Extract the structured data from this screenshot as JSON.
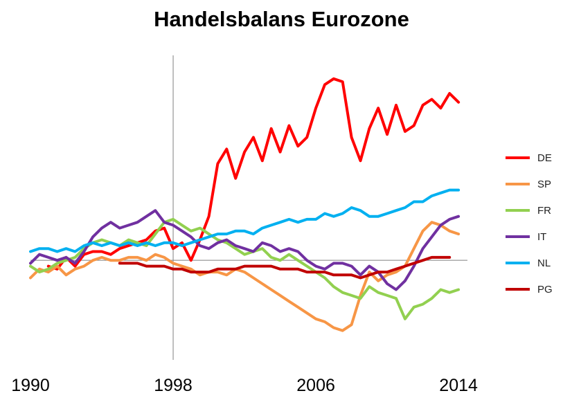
{
  "chart_data": {
    "type": "line",
    "title": "Handelsbalans Eurozone",
    "xlabel": "",
    "ylabel": "",
    "xlim": [
      1990,
      2014.5
    ],
    "ylim": [
      -3.4,
      7.0
    ],
    "xticks": [
      1990,
      1998,
      2006,
      2014
    ],
    "xtick_labels": [
      "1990",
      "1998",
      "2006",
      "2014"
    ],
    "zero_line": 0,
    "vertical_line_x": 1998,
    "y_axis_labels": false,
    "grid": false,
    "legend": "right",
    "series": [
      {
        "name": "DE",
        "color": "#ff0000",
        "x": [
          1991.0,
          1991.5,
          1992.0,
          1992.5,
          1993.0,
          1993.5,
          1994.0,
          1994.5,
          1995.0,
          1995.5,
          1996.0,
          1996.5,
          1997.0,
          1997.5,
          1998.0,
          1998.5,
          1999.0,
          1999.5,
          2000.0,
          2000.5,
          2001.0,
          2001.5,
          2002.0,
          2002.5,
          2003.0,
          2003.5,
          2004.0,
          2004.5,
          2005.0,
          2005.5,
          2006.0,
          2006.5,
          2007.0,
          2007.5,
          2008.0,
          2008.5,
          2009.0,
          2009.5,
          2010.0,
          2010.5,
          2011.0,
          2011.5,
          2012.0,
          2012.5,
          2013.0,
          2013.5,
          2014.0
        ],
        "y": [
          -0.2,
          -0.3,
          0.1,
          -0.2,
          0.2,
          0.3,
          0.3,
          0.2,
          0.4,
          0.5,
          0.6,
          0.7,
          1.0,
          1.1,
          0.4,
          0.6,
          0.0,
          0.7,
          1.5,
          3.3,
          3.8,
          2.8,
          3.7,
          4.2,
          3.4,
          4.5,
          3.7,
          4.6,
          3.9,
          4.2,
          5.2,
          6.0,
          6.2,
          6.1,
          4.2,
          3.4,
          4.5,
          5.2,
          4.3,
          5.3,
          4.4,
          4.6,
          5.3,
          5.5,
          5.2,
          5.7,
          5.4
        ]
      },
      {
        "name": "SP",
        "color": "#f79646",
        "x": [
          1990.0,
          1990.5,
          1991.0,
          1991.5,
          1992.0,
          1992.5,
          1993.0,
          1993.5,
          1994.0,
          1994.5,
          1995.0,
          1995.5,
          1996.0,
          1996.5,
          1997.0,
          1997.5,
          1998.0,
          1998.5,
          1999.0,
          1999.5,
          2000.0,
          2000.5,
          2001.0,
          2001.5,
          2002.0,
          2002.5,
          2003.0,
          2003.5,
          2004.0,
          2004.5,
          2005.0,
          2005.5,
          2006.0,
          2006.5,
          2007.0,
          2007.5,
          2008.0,
          2008.5,
          2009.0,
          2009.5,
          2010.0,
          2010.5,
          2011.0,
          2011.5,
          2012.0,
          2012.5,
          2013.0,
          2013.5,
          2014.0
        ],
        "y": [
          -0.6,
          -0.3,
          -0.4,
          -0.2,
          -0.5,
          -0.3,
          -0.2,
          0.0,
          0.1,
          0.0,
          0.0,
          0.1,
          0.1,
          0.0,
          0.2,
          0.1,
          -0.1,
          -0.2,
          -0.3,
          -0.5,
          -0.4,
          -0.4,
          -0.5,
          -0.3,
          -0.4,
          -0.6,
          -0.8,
          -1.0,
          -1.2,
          -1.4,
          -1.6,
          -1.8,
          -2.0,
          -2.1,
          -2.3,
          -2.4,
          -2.2,
          -1.2,
          -0.4,
          -0.7,
          -0.5,
          -0.4,
          -0.2,
          0.4,
          1.0,
          1.3,
          1.2,
          1.0,
          0.9
        ]
      },
      {
        "name": "FR",
        "color": "#92d050",
        "x": [
          1990.0,
          1990.5,
          1991.0,
          1991.5,
          1992.0,
          1992.5,
          1993.0,
          1993.5,
          1994.0,
          1994.5,
          1995.0,
          1995.5,
          1996.0,
          1996.5,
          1997.0,
          1997.5,
          1998.0,
          1998.5,
          1999.0,
          1999.5,
          2000.0,
          2000.5,
          2001.0,
          2001.5,
          2002.0,
          2002.5,
          2003.0,
          2003.5,
          2004.0,
          2004.5,
          2005.0,
          2005.5,
          2006.0,
          2006.5,
          2007.0,
          2007.5,
          2008.0,
          2008.5,
          2009.0,
          2009.5,
          2010.0,
          2010.5,
          2011.0,
          2011.5,
          2012.0,
          2012.5,
          2013.0,
          2013.5,
          2014.0
        ],
        "y": [
          -0.2,
          -0.4,
          -0.3,
          -0.1,
          0.0,
          0.1,
          0.4,
          0.6,
          0.7,
          0.6,
          0.5,
          0.7,
          0.6,
          0.5,
          0.9,
          1.3,
          1.4,
          1.2,
          1.0,
          1.1,
          0.9,
          0.7,
          0.6,
          0.4,
          0.2,
          0.3,
          0.4,
          0.1,
          0.0,
          0.2,
          0.0,
          -0.2,
          -0.4,
          -0.6,
          -0.9,
          -1.1,
          -1.2,
          -1.3,
          -0.9,
          -1.1,
          -1.2,
          -1.3,
          -2.0,
          -1.6,
          -1.5,
          -1.3,
          -1.0,
          -1.1,
          -1.0
        ]
      },
      {
        "name": "IT",
        "color": "#7030a0",
        "x": [
          1990.0,
          1990.5,
          1991.0,
          1991.5,
          1992.0,
          1992.5,
          1993.0,
          1993.5,
          1994.0,
          1994.5,
          1995.0,
          1995.5,
          1996.0,
          1996.5,
          1997.0,
          1997.5,
          1998.0,
          1998.5,
          1999.0,
          1999.5,
          2000.0,
          2000.5,
          2001.0,
          2001.5,
          2002.0,
          2002.5,
          2003.0,
          2003.5,
          2004.0,
          2004.5,
          2005.0,
          2005.5,
          2006.0,
          2006.5,
          2007.0,
          2007.5,
          2008.0,
          2008.5,
          2009.0,
          2009.5,
          2010.0,
          2010.5,
          2011.0,
          2011.5,
          2012.0,
          2012.5,
          2013.0,
          2013.5,
          2014.0
        ],
        "y": [
          -0.1,
          0.2,
          0.1,
          0.0,
          0.1,
          -0.1,
          0.3,
          0.8,
          1.1,
          1.3,
          1.1,
          1.2,
          1.3,
          1.5,
          1.7,
          1.3,
          1.2,
          1.0,
          0.8,
          0.5,
          0.4,
          0.6,
          0.7,
          0.5,
          0.4,
          0.3,
          0.6,
          0.5,
          0.3,
          0.4,
          0.3,
          0.0,
          -0.2,
          -0.3,
          -0.1,
          -0.1,
          -0.2,
          -0.5,
          -0.2,
          -0.4,
          -0.8,
          -1.0,
          -0.7,
          -0.2,
          0.4,
          0.8,
          1.2,
          1.4,
          1.5
        ]
      },
      {
        "name": "NL",
        "color": "#00b0f0",
        "x": [
          1990.0,
          1990.5,
          1991.0,
          1991.5,
          1992.0,
          1992.5,
          1993.0,
          1993.5,
          1994.0,
          1994.5,
          1995.0,
          1995.5,
          1996.0,
          1996.5,
          1997.0,
          1997.5,
          1998.0,
          1998.5,
          1999.0,
          1999.5,
          2000.0,
          2000.5,
          2001.0,
          2001.5,
          2002.0,
          2002.5,
          2003.0,
          2003.5,
          2004.0,
          2004.5,
          2005.0,
          2005.5,
          2006.0,
          2006.5,
          2007.0,
          2007.5,
          2008.0,
          2008.5,
          2009.0,
          2009.5,
          2010.0,
          2010.5,
          2011.0,
          2011.5,
          2012.0,
          2012.5,
          2013.0,
          2013.5,
          2014.0
        ],
        "y": [
          0.3,
          0.4,
          0.4,
          0.3,
          0.4,
          0.3,
          0.5,
          0.6,
          0.5,
          0.6,
          0.5,
          0.6,
          0.5,
          0.6,
          0.5,
          0.6,
          0.6,
          0.5,
          0.6,
          0.7,
          0.8,
          0.9,
          0.9,
          1.0,
          1.0,
          0.9,
          1.1,
          1.2,
          1.3,
          1.4,
          1.3,
          1.4,
          1.4,
          1.6,
          1.5,
          1.6,
          1.8,
          1.7,
          1.5,
          1.5,
          1.6,
          1.7,
          1.8,
          2.0,
          2.0,
          2.2,
          2.3,
          2.4,
          2.4
        ]
      },
      {
        "name": "PG",
        "color": "#c00000",
        "x": [
          1995.0,
          1995.5,
          1996.0,
          1996.5,
          1997.0,
          1997.5,
          1998.0,
          1998.5,
          1999.0,
          1999.5,
          2000.0,
          2000.5,
          2001.0,
          2001.5,
          2002.0,
          2002.5,
          2003.0,
          2003.5,
          2004.0,
          2004.5,
          2005.0,
          2005.5,
          2006.0,
          2006.5,
          2007.0,
          2007.5,
          2008.0,
          2008.5,
          2009.0,
          2009.5,
          2010.0,
          2010.5,
          2011.0,
          2011.5,
          2012.0,
          2012.5,
          2013.0,
          2013.5
        ],
        "y": [
          -0.1,
          -0.1,
          -0.1,
          -0.2,
          -0.2,
          -0.2,
          -0.3,
          -0.3,
          -0.4,
          -0.4,
          -0.4,
          -0.3,
          -0.3,
          -0.3,
          -0.2,
          -0.2,
          -0.2,
          -0.2,
          -0.3,
          -0.3,
          -0.3,
          -0.4,
          -0.4,
          -0.4,
          -0.5,
          -0.5,
          -0.5,
          -0.6,
          -0.5,
          -0.4,
          -0.4,
          -0.3,
          -0.2,
          -0.1,
          0.0,
          0.1,
          0.1,
          0.1
        ]
      }
    ]
  }
}
